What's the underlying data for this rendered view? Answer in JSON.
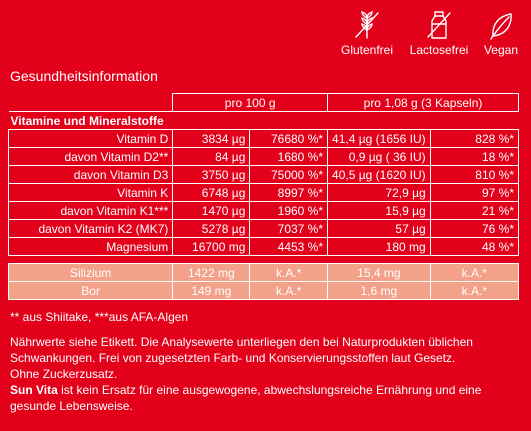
{
  "badges": [
    {
      "label": "Glutenfrei",
      "icon": "wheat-crossed-icon"
    },
    {
      "label": "Lactosefrei",
      "icon": "milk-crossed-icon"
    },
    {
      "label": "Vegan",
      "icon": "leaf-icon"
    }
  ],
  "heading": "Gesundheitsinformation",
  "table": {
    "col_headers": [
      "pro 100 g",
      "pro 1,08 g (3 Kapseln)"
    ],
    "section_title": "Vitamine und Mineralstoffe",
    "rows": [
      [
        "Vitamin D",
        "3834 µg",
        "76680 %*",
        "41,4 µg (1656 IU)",
        "828 %*"
      ],
      [
        "davon Vitamin D2**",
        "84 µg",
        "1680 %*",
        "0,9 µg ( 36 IU)",
        "18 %*"
      ],
      [
        "davon Vitamin D3",
        "3750 µg",
        "75000 %*",
        "40,5 µg (1620 IU)",
        "810 %*"
      ],
      [
        "Vitamin K",
        "6748 µg",
        "8997 %*",
        "72,9 µg",
        "97 %*"
      ],
      [
        "davon Vitamin K1***",
        "1470 µg",
        "1960 %*",
        "15,9 µg",
        "21 %*"
      ],
      [
        "davon Vitamin K2 (MK7)",
        "5278 µg",
        "7037 %*",
        "57 µg",
        "76 %*"
      ],
      [
        "Magnesium",
        "16700 mg",
        "4453 %*",
        "180 mg",
        "48 %*"
      ]
    ],
    "mineral_rows": [
      [
        "Silizium",
        "1422 mg",
        "k.A.*",
        "15,4 mg",
        "k.A.*"
      ],
      [
        "Bor",
        "149 mg",
        "k.A.*",
        "1,6 mg",
        "k.A.*"
      ]
    ],
    "mineral_bg": "#f3a188"
  },
  "footnote": "** aus Shiitake, ***aus AFA-Algen",
  "notes": {
    "p1": "Nährwerte siehe Etikett. Die Analysewerte unterliegen den bei Naturprodukten üblichen Schwankungen. Frei von zugesetzten Farb- und Konservierungsstoffen laut Gesetz.",
    "p2": "Ohne Zuckerzusatz.",
    "brand": "Sun Vita",
    "p3": " ist kein Ersatz für eine ausgewogene, abwechslungsreiche Ernährung und eine gesunde Lebensweise."
  },
  "colors": {
    "background": "#e2001a",
    "text": "#ffffff"
  }
}
